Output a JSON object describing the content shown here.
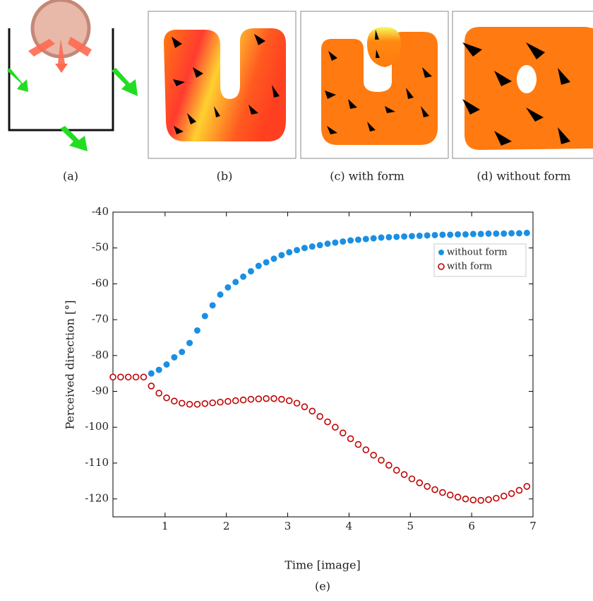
{
  "panels": [
    {
      "caption": "(a)"
    },
    {
      "caption": "(b)"
    },
    {
      "caption": "(c) with form"
    },
    {
      "caption": "(d) without form"
    }
  ],
  "chart_data": {
    "type": "scatter",
    "caption": "(e)",
    "x_label": "Time [image]",
    "y_label": "Perceived direction [°]",
    "xlim": [
      0.15,
      7
    ],
    "ylim": [
      -125,
      -40
    ],
    "xticks": [
      1,
      2,
      3,
      4,
      5,
      6,
      7
    ],
    "yticks": [
      -40,
      -50,
      -60,
      -70,
      -80,
      -90,
      -100,
      -110,
      -120
    ],
    "legend": "upper right",
    "x": [
      0.15,
      0.275,
      0.4,
      0.525,
      0.65,
      0.775,
      0.9,
      1.025,
      1.15,
      1.275,
      1.4,
      1.525,
      1.65,
      1.775,
      1.9,
      2.025,
      2.15,
      2.275,
      2.4,
      2.525,
      2.65,
      2.775,
      2.9,
      3.025,
      3.15,
      3.275,
      3.4,
      3.525,
      3.65,
      3.775,
      3.9,
      4.025,
      4.15,
      4.275,
      4.4,
      4.525,
      4.65,
      4.775,
      4.9,
      5.025,
      5.15,
      5.275,
      5.4,
      5.525,
      5.65,
      5.775,
      5.9,
      6.025,
      6.15,
      6.275,
      6.4,
      6.525,
      6.65,
      6.775,
      6.9
    ],
    "series": [
      {
        "name": "without form",
        "color": "#1a8fe3",
        "marker": "filled",
        "values": [
          -86,
          -86,
          -86,
          -86,
          -86,
          -85,
          -84,
          -82.5,
          -80.5,
          -79,
          -76.5,
          -73,
          -69,
          -66,
          -63,
          -61,
          -59.5,
          -58,
          -56.5,
          -55,
          -54,
          -53,
          -52,
          -51.2,
          -50.6,
          -50,
          -49.6,
          -49.2,
          -48.8,
          -48.5,
          -48.2,
          -47.9,
          -47.7,
          -47.5,
          -47.3,
          -47.1,
          -47,
          -46.9,
          -46.8,
          -46.7,
          -46.6,
          -46.5,
          -46.4,
          -46.3,
          -46.3,
          -46.2,
          -46.2,
          -46.1,
          -46.1,
          -46,
          -46,
          -46,
          -45.9,
          -45.9,
          -45.8
        ]
      },
      {
        "name": "with form",
        "color": "#c00000",
        "marker": "open",
        "values": [
          -86,
          -86,
          -86,
          -86,
          -86,
          -88.5,
          -90.5,
          -91.8,
          -92.7,
          -93.3,
          -93.6,
          -93.6,
          -93.4,
          -93.2,
          -93,
          -92.8,
          -92.6,
          -92.4,
          -92.2,
          -92.1,
          -92,
          -92,
          -92.2,
          -92.6,
          -93.3,
          -94.3,
          -95.5,
          -97,
          -98.5,
          -100,
          -101.6,
          -103.2,
          -104.8,
          -106.3,
          -107.8,
          -109.2,
          -110.6,
          -112,
          -113.2,
          -114.4,
          -115.5,
          -116.5,
          -117.4,
          -118.2,
          -118.9,
          -119.5,
          -120,
          -120.3,
          -120.4,
          -120.2,
          -119.8,
          -119.2,
          -118.5,
          -117.6,
          -116.5
        ]
      }
    ]
  }
}
